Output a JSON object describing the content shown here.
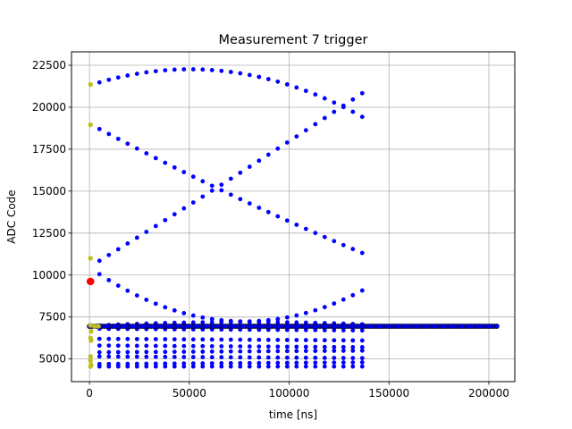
{
  "chart_data": {
    "type": "scatter",
    "title": "Measurement 7 trigger",
    "xlabel": "time [ns]",
    "ylabel": "ADC Code",
    "xlim": [
      -9000,
      213000
    ],
    "ylim": [
      3650,
      23300
    ],
    "xticks": [
      0,
      50000,
      100000,
      150000,
      200000
    ],
    "xtick_labels": [
      "0",
      "50000",
      "100000",
      "150000",
      "200000"
    ],
    "yticks": [
      5000,
      7500,
      10000,
      12500,
      15000,
      17500,
      20000,
      22500
    ],
    "ytick_labels": [
      "5000",
      "7500",
      "10000",
      "12500",
      "15000",
      "17500",
      "20000",
      "22500"
    ],
    "grid": true,
    "colors": {
      "main": "#0000ff",
      "start": "#bfbf1f",
      "trigger": "#ff0000",
      "baseline_edge": "#000000",
      "grid": "#b0b0b0"
    },
    "series": [
      {
        "role": "sweeps",
        "color": "#0000ff",
        "x_start": 5000,
        "x_step": 4700,
        "count": 29,
        "curves": [
          {
            "y_at_5000": 21480,
            "y_at_45000": 22250,
            "y_at_140000": 19200
          },
          {
            "y_at_5000": 18700,
            "y_at_60000": 15400,
            "y_at_140000": 11150
          },
          {
            "y_at_5000": 10850,
            "y_at_65000": 15300,
            "y_at_140000": 21100
          },
          {
            "y_at_5000": 10050,
            "y_at_100000": 7500,
            "y_at_140000": 9300
          },
          {
            "y_at_5000": 7000,
            "y_at_80000": 7200,
            "y_at_140000": 7050
          },
          {
            "y_at_5000": 6800,
            "y_at_140000": 6700
          },
          {
            "y_at_5000": 6200,
            "y_at_140000": 6100
          },
          {
            "y_at_5000": 5800,
            "y_at_140000": 5700
          },
          {
            "y_at_5000": 5400,
            "y_at_140000": 5500
          },
          {
            "y_at_5000": 5150,
            "y_at_140000": 5050
          },
          {
            "y_at_5000": 4700,
            "y_at_140000": 4800
          },
          {
            "y_at_5000": 4550,
            "y_at_140000": 4550
          }
        ]
      },
      {
        "role": "baseline",
        "color": "#0000ff",
        "edge": "#000000",
        "y": 6950,
        "x_from": 0,
        "x_to": 204000,
        "count": 160
      },
      {
        "role": "start",
        "color": "#bfbf1f",
        "points": [
          {
            "x": 500,
            "y": 21350
          },
          {
            "x": 500,
            "y": 18950
          },
          {
            "x": 500,
            "y": 11000
          },
          {
            "x": 500,
            "y": 7000
          },
          {
            "x": 2500,
            "y": 6950
          },
          {
            "x": 4500,
            "y": 6950
          },
          {
            "x": 800,
            "y": 6650
          },
          {
            "x": 500,
            "y": 6250
          },
          {
            "x": 800,
            "y": 6100
          },
          {
            "x": 500,
            "y": 5150
          },
          {
            "x": 500,
            "y": 4900
          },
          {
            "x": 800,
            "y": 4650
          },
          {
            "x": 500,
            "y": 4550
          }
        ]
      },
      {
        "role": "trigger",
        "color": "#ff0000",
        "points": [
          {
            "x": 500,
            "y": 9620
          }
        ]
      }
    ]
  }
}
